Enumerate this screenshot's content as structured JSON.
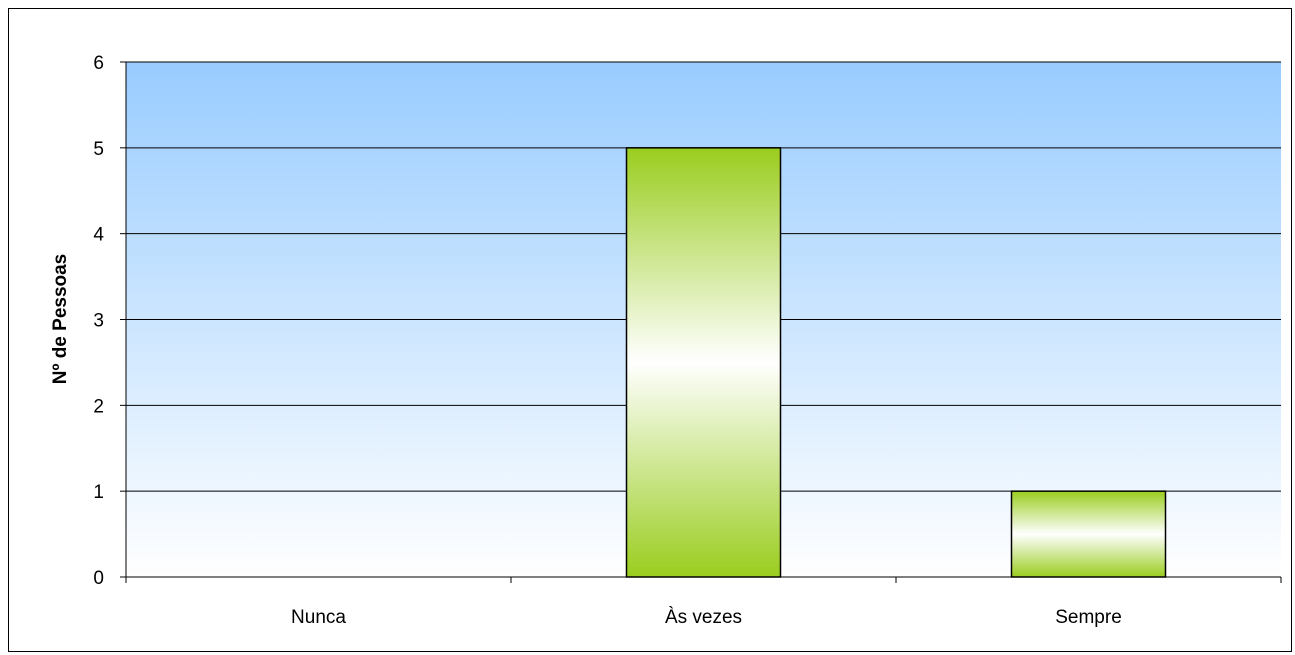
{
  "chart_data": {
    "type": "bar",
    "title": "",
    "xlabel": "",
    "ylabel": "Nº de Pessoas",
    "categories": [
      "Nunca",
      "Às vezes",
      "Sempre"
    ],
    "values": [
      0,
      5,
      1
    ],
    "ylim": [
      0,
      6
    ],
    "yticks": [
      "0",
      "1",
      "2",
      "3",
      "4",
      "5",
      "6"
    ],
    "grid": true,
    "legend": "none",
    "colors": {
      "bar_edge": "#9acd1f",
      "bar_center": "#ffffff",
      "plot_top": "#99ccff",
      "plot_bottom": "#ffffff",
      "gridline": "#000000"
    }
  }
}
